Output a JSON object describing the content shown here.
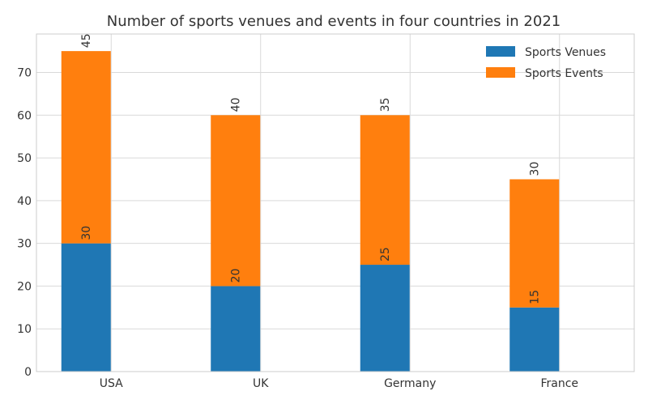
{
  "chart_data": {
    "type": "bar",
    "stacked": true,
    "title": "Number of sports venues and events in four countries in 2021",
    "xlabel": "",
    "ylabel": "",
    "categories": [
      "USA",
      "UK",
      "Germany",
      "France"
    ],
    "series": [
      {
        "name": "Sports Venues",
        "values": [
          30,
          20,
          25,
          15
        ],
        "color": "#1f77b4"
      },
      {
        "name": "Sports Events",
        "values": [
          45,
          40,
          35,
          30
        ],
        "color": "#ff7f0e"
      }
    ],
    "ylim": [
      0,
      79
    ],
    "yticks": [
      0,
      10,
      20,
      30,
      40,
      50,
      60,
      70
    ],
    "grid": true,
    "legend_position": "top-right"
  }
}
